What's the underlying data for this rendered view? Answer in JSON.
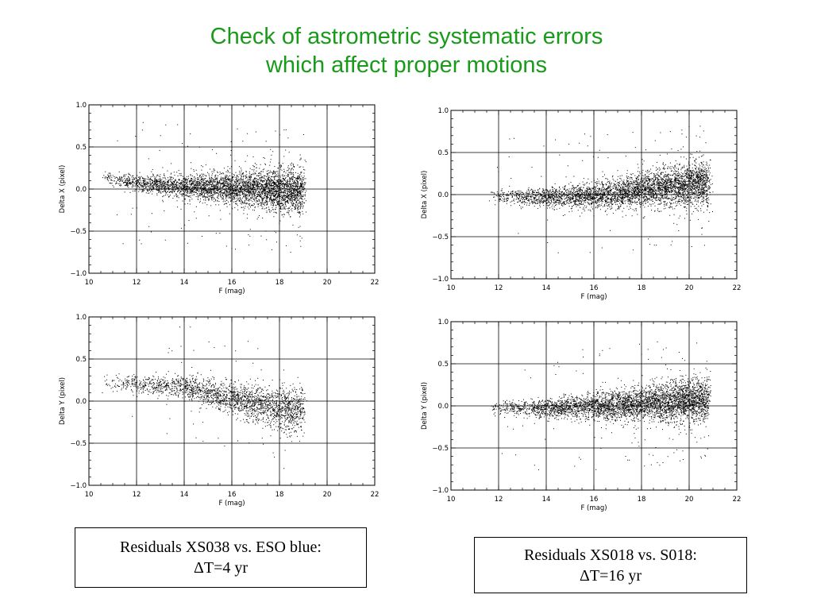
{
  "title": {
    "line1": "Check of astrometric systematic errors",
    "line2": "which affect proper motions"
  },
  "colors": {
    "title": "#1a9a1a",
    "points": "#000000",
    "grid": "#000000"
  },
  "chart_data": [
    {
      "type": "scatter",
      "xlabel": "F (mag)",
      "ylabel": "Delta X (pixel)",
      "xlim": [
        10,
        22
      ],
      "ylim": [
        -1.0,
        1.0
      ],
      "xticks": [
        "10",
        "12",
        "14",
        "16",
        "18",
        "20",
        "22"
      ],
      "yticks": [
        "−1.0",
        "−0.5",
        "0.0",
        "0.5",
        "1.0"
      ],
      "grid_x": [
        12,
        14,
        16,
        18,
        20
      ],
      "grid_y": [
        -0.5,
        0.0,
        0.5
      ],
      "grid": true,
      "density": [
        {
          "x": 10.5,
          "y": 0.15
        },
        {
          "x": 11.5,
          "y": 0.1
        },
        {
          "x": 12.5,
          "y": 0.06
        },
        {
          "x": 13.5,
          "y": 0.04
        },
        {
          "x": 14.5,
          "y": 0.03
        },
        {
          "x": 15.5,
          "y": 0.02
        },
        {
          "x": 16.5,
          "y": 0.01
        },
        {
          "x": 17.5,
          "y": 0.0
        },
        {
          "x": 18.5,
          "y": -0.02
        }
      ],
      "magnitude_range": [
        10.5,
        19.0
      ]
    },
    {
      "type": "scatter",
      "xlabel": "F (mag)",
      "ylabel": "Delta X (pixel)",
      "xlim": [
        10,
        22
      ],
      "ylim": [
        -1.0,
        1.0
      ],
      "xticks": [
        "10",
        "12",
        "14",
        "16",
        "18",
        "20",
        "22"
      ],
      "yticks": [
        "−1.0",
        "−0.5",
        "0.0",
        "0.5",
        "1.0"
      ],
      "grid_x": [
        12,
        14,
        16,
        18,
        20
      ],
      "grid_y": [
        -0.5,
        0.0,
        0.5
      ],
      "grid": true,
      "density": [
        {
          "x": 12.0,
          "y": -0.02
        },
        {
          "x": 14.0,
          "y": -0.03
        },
        {
          "x": 15.5,
          "y": -0.02
        },
        {
          "x": 16.5,
          "y": 0.01
        },
        {
          "x": 17.5,
          "y": 0.04
        },
        {
          "x": 18.5,
          "y": 0.07
        },
        {
          "x": 19.5,
          "y": 0.1
        },
        {
          "x": 20.5,
          "y": 0.12
        }
      ],
      "magnitude_range": [
        11.5,
        20.8
      ]
    },
    {
      "type": "scatter",
      "xlabel": "F (mag)",
      "ylabel": "Delta Y (pixel)",
      "xlim": [
        10,
        22
      ],
      "ylim": [
        -1.0,
        1.0
      ],
      "xticks": [
        "10",
        "12",
        "14",
        "16",
        "18",
        "20",
        "22"
      ],
      "yticks": [
        "−1.0",
        "−0.5",
        "0.0",
        "0.5",
        "1.0"
      ],
      "grid_x": [
        12,
        14,
        16,
        18,
        20
      ],
      "grid_y": [
        -0.5,
        0.0,
        0.5
      ],
      "grid": true,
      "density": [
        {
          "x": 10.5,
          "y": 0.22
        },
        {
          "x": 11.5,
          "y": 0.21
        },
        {
          "x": 12.5,
          "y": 0.2
        },
        {
          "x": 13.5,
          "y": 0.19
        },
        {
          "x": 14.5,
          "y": 0.14
        },
        {
          "x": 15.5,
          "y": 0.07
        },
        {
          "x": 16.5,
          "y": 0.01
        },
        {
          "x": 17.5,
          "y": -0.05
        },
        {
          "x": 18.5,
          "y": -0.1
        }
      ],
      "magnitude_range": [
        10.5,
        19.0
      ]
    },
    {
      "type": "scatter",
      "xlabel": "F (mag)",
      "ylabel": "Delta Y (pixel)",
      "xlim": [
        10,
        22
      ],
      "ylim": [
        -1.0,
        1.0
      ],
      "xticks": [
        "10",
        "12",
        "14",
        "16",
        "18",
        "20",
        "22"
      ],
      "yticks": [
        "−1.0",
        "−0.5",
        "0.0",
        "0.5",
        "1.0"
      ],
      "grid_x": [
        12,
        14,
        16,
        18,
        20
      ],
      "grid_y": [
        -0.5,
        0.0,
        0.5
      ],
      "grid": true,
      "density": [
        {
          "x": 12.0,
          "y": -0.02
        },
        {
          "x": 14.0,
          "y": -0.02
        },
        {
          "x": 15.5,
          "y": -0.01
        },
        {
          "x": 16.5,
          "y": 0.0
        },
        {
          "x": 17.5,
          "y": 0.02
        },
        {
          "x": 18.5,
          "y": 0.04
        },
        {
          "x": 19.5,
          "y": 0.06
        },
        {
          "x": 20.5,
          "y": 0.08
        }
      ],
      "magnitude_range": [
        11.5,
        20.8
      ]
    }
  ],
  "captions": [
    {
      "line1": "Residuals XS038 vs. ESO blue:",
      "line2": "ΔT=4 yr"
    },
    {
      "line1": "Residuals XS018 vs. S018:",
      "line2": "ΔT=16 yr"
    }
  ]
}
